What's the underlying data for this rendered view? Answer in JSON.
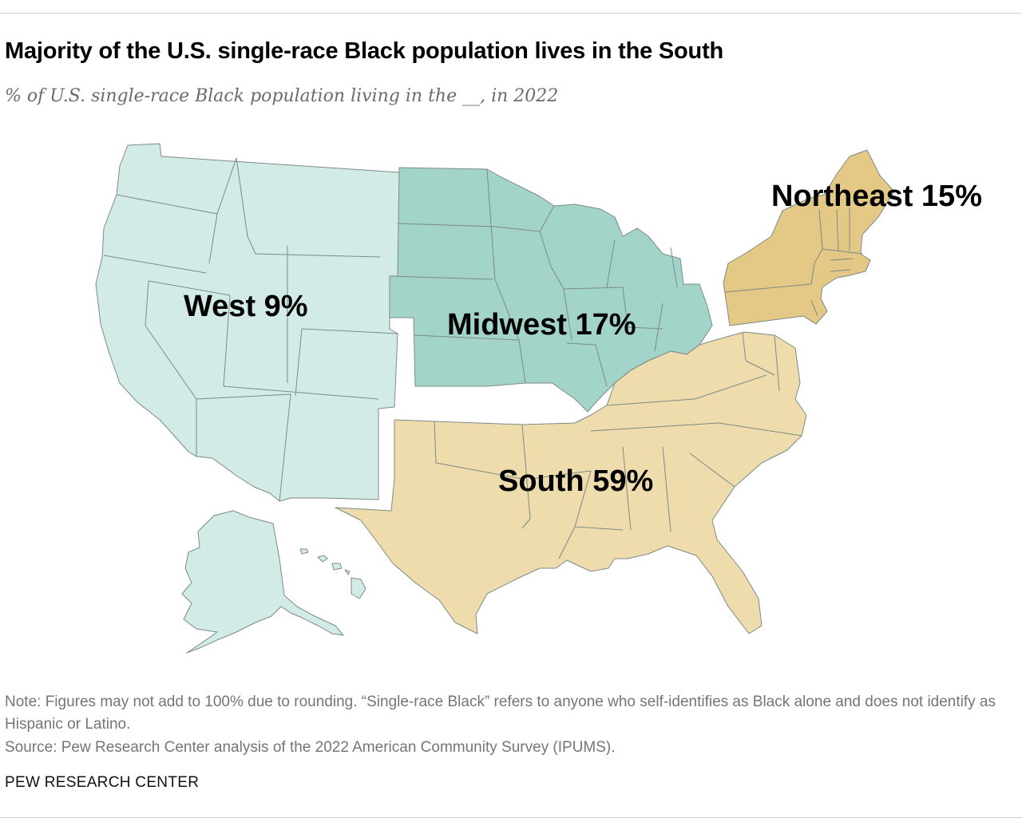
{
  "title": "Majority of the U.S. single-race Black population lives in the South",
  "subtitle": "% of U.S. single-race Black population living in the __, in 2022",
  "note": "Note: Figures may not add to 100% due to rounding. “Single-race Black” refers to anyone who self-identifies as Black alone and does not identify as Hispanic or Latino.",
  "source": "Source: Pew Research Center analysis of the 2022 American Community Survey (IPUMS).",
  "brand": "PEW RESEARCH CENTER",
  "colors": {
    "west": "#d3ebe6",
    "midwest": "#a3d4c9",
    "northeast": "#e3c985",
    "south": "#eedcac",
    "border": "#7d8a86"
  },
  "map": {
    "regions": [
      {
        "id": "west",
        "label": "West 9%",
        "value": 9
      },
      {
        "id": "midwest",
        "label": "Midwest 17%",
        "value": 17
      },
      {
        "id": "south",
        "label": "South 59%",
        "value": 59
      },
      {
        "id": "northeast",
        "label": "Northeast 15%",
        "value": 15
      }
    ]
  }
}
